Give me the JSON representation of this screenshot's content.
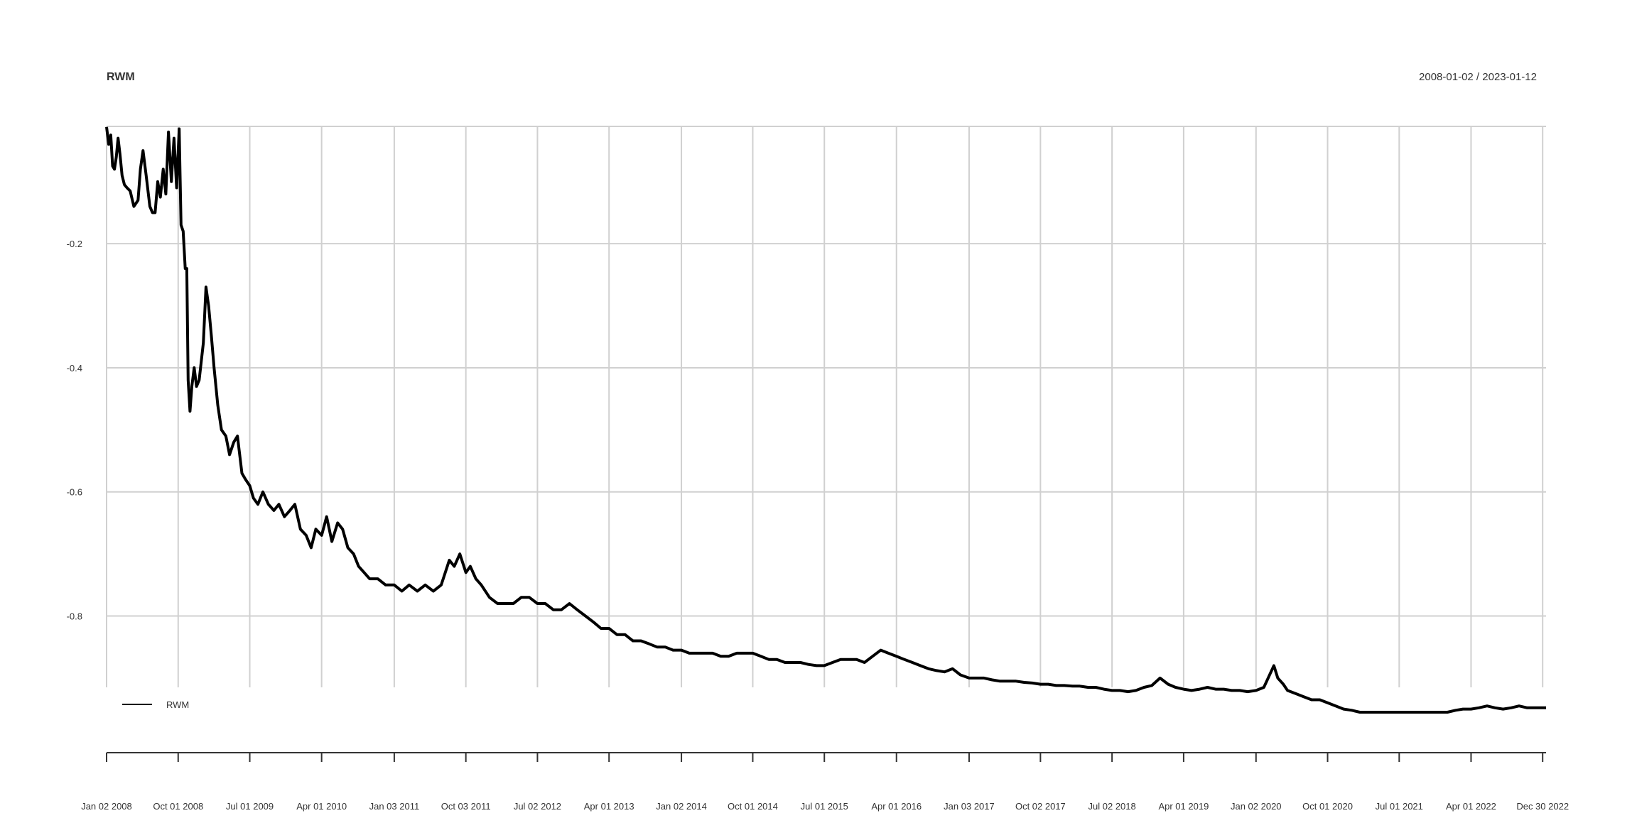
{
  "chart_data": {
    "type": "line",
    "title": "RWM",
    "date_range_label": "2008-01-02 / 2023-01-12",
    "xlabel": "",
    "ylabel": "",
    "x_range": [
      "2008-01-02",
      "2023-01-12"
    ],
    "ylim": [
      -0.915,
      -0.011
    ],
    "y_ticks": [
      -0.2,
      -0.4,
      -0.6,
      -0.8
    ],
    "y_tick_labels": [
      "-0.2",
      "-0.4",
      "-0.6",
      "-0.8"
    ],
    "x_ticks": [
      "2008-01-02",
      "2008-10-01",
      "2009-07-01",
      "2010-04-01",
      "2011-01-03",
      "2011-10-03",
      "2012-07-02",
      "2013-04-01",
      "2014-01-02",
      "2014-10-01",
      "2015-07-01",
      "2016-04-01",
      "2017-01-03",
      "2017-10-02",
      "2018-07-02",
      "2019-04-01",
      "2020-01-02",
      "2020-10-01",
      "2021-07-01",
      "2022-04-01",
      "2022-12-30"
    ],
    "x_tick_labels": [
      "Jan 02 2008",
      "Oct 01 2008",
      "Jul 01 2009",
      "Apr 01 2010",
      "Jan 03 2011",
      "Oct 03 2011",
      "Jul 02 2012",
      "Apr 01 2013",
      "Jan 02 2014",
      "Oct 01 2014",
      "Jul 01 2015",
      "Apr 01 2016",
      "Jan 03 2017",
      "Oct 02 2017",
      "Jul 02 2018",
      "Apr 01 2019",
      "Jan 02 2020",
      "Oct 01 2020",
      "Jul 01 2021",
      "Apr 01 2022",
      "Dec 30 2022"
    ],
    "grid": true,
    "legend": {
      "placement": "bottom-left",
      "entries": [
        "RWM"
      ]
    },
    "series": [
      {
        "name": "RWM",
        "color": "#000000",
        "points": [
          [
            "2008-01-02",
            -0.012
          ],
          [
            "2008-01-10",
            -0.04
          ],
          [
            "2008-01-18",
            -0.025
          ],
          [
            "2008-01-25",
            -0.075
          ],
          [
            "2008-02-01",
            -0.08
          ],
          [
            "2008-02-08",
            -0.06
          ],
          [
            "2008-02-15",
            -0.03
          ],
          [
            "2008-02-22",
            -0.055
          ],
          [
            "2008-03-01",
            -0.09
          ],
          [
            "2008-03-10",
            -0.105
          ],
          [
            "2008-03-20",
            -0.11
          ],
          [
            "2008-04-01",
            -0.115
          ],
          [
            "2008-04-15",
            -0.14
          ],
          [
            "2008-05-01",
            -0.13
          ],
          [
            "2008-05-10",
            -0.08
          ],
          [
            "2008-05-20",
            -0.05
          ],
          [
            "2008-06-01",
            -0.09
          ],
          [
            "2008-06-15",
            -0.14
          ],
          [
            "2008-06-25",
            -0.15
          ],
          [
            "2008-07-05",
            -0.15
          ],
          [
            "2008-07-15",
            -0.1
          ],
          [
            "2008-07-25",
            -0.125
          ],
          [
            "2008-08-05",
            -0.08
          ],
          [
            "2008-08-15",
            -0.12
          ],
          [
            "2008-08-25",
            -0.02
          ],
          [
            "2008-09-05",
            -0.1
          ],
          [
            "2008-09-15",
            -0.03
          ],
          [
            "2008-09-25",
            -0.11
          ],
          [
            "2008-10-05",
            -0.015
          ],
          [
            "2008-10-12",
            -0.17
          ],
          [
            "2008-10-20",
            -0.18
          ],
          [
            "2008-10-28",
            -0.24
          ],
          [
            "2008-11-03",
            -0.24
          ],
          [
            "2008-11-08",
            -0.42
          ],
          [
            "2008-11-15",
            -0.47
          ],
          [
            "2008-11-22",
            -0.43
          ],
          [
            "2008-12-01",
            -0.4
          ],
          [
            "2008-12-10",
            -0.43
          ],
          [
            "2008-12-20",
            -0.42
          ],
          [
            "2009-01-05",
            -0.36
          ],
          [
            "2009-01-15",
            -0.27
          ],
          [
            "2009-01-25",
            -0.3
          ],
          [
            "2009-02-05",
            -0.35
          ],
          [
            "2009-02-15",
            -0.4
          ],
          [
            "2009-03-01",
            -0.46
          ],
          [
            "2009-03-15",
            -0.5
          ],
          [
            "2009-04-01",
            -0.51
          ],
          [
            "2009-04-15",
            -0.54
          ],
          [
            "2009-05-01",
            -0.52
          ],
          [
            "2009-05-15",
            -0.51
          ],
          [
            "2009-06-01",
            -0.57
          ],
          [
            "2009-06-15",
            -0.58
          ],
          [
            "2009-07-01",
            -0.59
          ],
          [
            "2009-07-15",
            -0.61
          ],
          [
            "2009-08-01",
            -0.62
          ],
          [
            "2009-08-20",
            -0.6
          ],
          [
            "2009-09-10",
            -0.62
          ],
          [
            "2009-10-01",
            -0.63
          ],
          [
            "2009-10-20",
            -0.62
          ],
          [
            "2009-11-10",
            -0.64
          ],
          [
            "2009-12-01",
            -0.63
          ],
          [
            "2009-12-20",
            -0.62
          ],
          [
            "2010-01-10",
            -0.66
          ],
          [
            "2010-02-01",
            -0.67
          ],
          [
            "2010-02-20",
            -0.69
          ],
          [
            "2010-03-10",
            -0.66
          ],
          [
            "2010-04-01",
            -0.67
          ],
          [
            "2010-04-20",
            -0.64
          ],
          [
            "2010-05-10",
            -0.68
          ],
          [
            "2010-06-01",
            -0.65
          ],
          [
            "2010-06-20",
            -0.66
          ],
          [
            "2010-07-10",
            -0.69
          ],
          [
            "2010-08-01",
            -0.7
          ],
          [
            "2010-08-20",
            -0.72
          ],
          [
            "2010-09-10",
            -0.73
          ],
          [
            "2010-10-01",
            -0.74
          ],
          [
            "2010-11-01",
            -0.74
          ],
          [
            "2010-12-01",
            -0.75
          ],
          [
            "2011-01-03",
            -0.75
          ],
          [
            "2011-02-01",
            -0.76
          ],
          [
            "2011-03-01",
            -0.75
          ],
          [
            "2011-04-01",
            -0.76
          ],
          [
            "2011-05-01",
            -0.75
          ],
          [
            "2011-06-01",
            -0.76
          ],
          [
            "2011-07-01",
            -0.75
          ],
          [
            "2011-08-01",
            -0.71
          ],
          [
            "2011-08-20",
            -0.72
          ],
          [
            "2011-09-10",
            -0.7
          ],
          [
            "2011-10-03",
            -0.73
          ],
          [
            "2011-10-20",
            -0.72
          ],
          [
            "2011-11-10",
            -0.74
          ],
          [
            "2011-12-01",
            -0.75
          ],
          [
            "2012-01-01",
            -0.77
          ],
          [
            "2012-02-01",
            -0.78
          ],
          [
            "2012-03-01",
            -0.78
          ],
          [
            "2012-04-01",
            -0.78
          ],
          [
            "2012-05-01",
            -0.77
          ],
          [
            "2012-06-01",
            -0.77
          ],
          [
            "2012-07-02",
            -0.78
          ],
          [
            "2012-08-01",
            -0.78
          ],
          [
            "2012-09-01",
            -0.79
          ],
          [
            "2012-10-01",
            -0.79
          ],
          [
            "2012-11-01",
            -0.78
          ],
          [
            "2012-12-01",
            -0.79
          ],
          [
            "2013-01-01",
            -0.8
          ],
          [
            "2013-02-01",
            -0.81
          ],
          [
            "2013-03-01",
            -0.82
          ],
          [
            "2013-04-01",
            -0.82
          ],
          [
            "2013-05-01",
            -0.83
          ],
          [
            "2013-06-01",
            -0.83
          ],
          [
            "2013-07-01",
            -0.84
          ],
          [
            "2013-08-01",
            -0.84
          ],
          [
            "2013-09-01",
            -0.845
          ],
          [
            "2013-10-01",
            -0.85
          ],
          [
            "2013-11-01",
            -0.85
          ],
          [
            "2013-12-01",
            -0.855
          ],
          [
            "2014-01-02",
            -0.855
          ],
          [
            "2014-02-01",
            -0.86
          ],
          [
            "2014-03-01",
            -0.86
          ],
          [
            "2014-04-01",
            -0.86
          ],
          [
            "2014-05-01",
            -0.86
          ],
          [
            "2014-06-01",
            -0.865
          ],
          [
            "2014-07-01",
            -0.865
          ],
          [
            "2014-08-01",
            -0.86
          ],
          [
            "2014-09-01",
            -0.86
          ],
          [
            "2014-10-01",
            -0.86
          ],
          [
            "2014-11-01",
            -0.865
          ],
          [
            "2014-12-01",
            -0.87
          ],
          [
            "2015-01-01",
            -0.87
          ],
          [
            "2015-02-01",
            -0.875
          ],
          [
            "2015-03-01",
            -0.875
          ],
          [
            "2015-04-01",
            -0.875
          ],
          [
            "2015-05-01",
            -0.878
          ],
          [
            "2015-06-01",
            -0.88
          ],
          [
            "2015-07-01",
            -0.88
          ],
          [
            "2015-08-01",
            -0.875
          ],
          [
            "2015-09-01",
            -0.87
          ],
          [
            "2015-10-01",
            -0.87
          ],
          [
            "2015-11-01",
            -0.87
          ],
          [
            "2015-12-01",
            -0.875
          ],
          [
            "2016-01-01",
            -0.865
          ],
          [
            "2016-02-01",
            -0.855
          ],
          [
            "2016-03-01",
            -0.86
          ],
          [
            "2016-04-01",
            -0.865
          ],
          [
            "2016-05-01",
            -0.87
          ],
          [
            "2016-06-01",
            -0.875
          ],
          [
            "2016-07-01",
            -0.88
          ],
          [
            "2016-08-01",
            -0.885
          ],
          [
            "2016-09-01",
            -0.888
          ],
          [
            "2016-10-01",
            -0.89
          ],
          [
            "2016-11-01",
            -0.885
          ],
          [
            "2016-12-01",
            -0.895
          ],
          [
            "2017-01-03",
            -0.9
          ],
          [
            "2017-02-01",
            -0.9
          ],
          [
            "2017-03-01",
            -0.9
          ],
          [
            "2017-04-01",
            -0.903
          ],
          [
            "2017-05-01",
            -0.905
          ],
          [
            "2017-06-01",
            -0.905
          ],
          [
            "2017-07-01",
            -0.905
          ],
          [
            "2017-08-01",
            -0.907
          ],
          [
            "2017-09-01",
            -0.908
          ],
          [
            "2017-10-02",
            -0.91
          ],
          [
            "2017-11-01",
            -0.91
          ],
          [
            "2017-12-01",
            -0.912
          ],
          [
            "2018-01-01",
            -0.912
          ],
          [
            "2018-02-01",
            -0.913
          ],
          [
            "2018-03-01",
            -0.913
          ],
          [
            "2018-04-01",
            -0.915
          ],
          [
            "2018-05-01",
            -0.915
          ],
          [
            "2018-06-01",
            -0.918
          ],
          [
            "2018-07-02",
            -0.92
          ],
          [
            "2018-08-01",
            -0.92
          ],
          [
            "2018-09-01",
            -0.922
          ],
          [
            "2018-10-01",
            -0.92
          ],
          [
            "2018-11-01",
            -0.915
          ],
          [
            "2018-12-01",
            -0.912
          ],
          [
            "2019-01-01",
            -0.9
          ],
          [
            "2019-02-01",
            -0.91
          ],
          [
            "2019-03-01",
            -0.915
          ],
          [
            "2019-04-01",
            -0.918
          ],
          [
            "2019-05-01",
            -0.92
          ],
          [
            "2019-06-01",
            -0.918
          ],
          [
            "2019-07-01",
            -0.915
          ],
          [
            "2019-08-01",
            -0.918
          ],
          [
            "2019-09-01",
            -0.918
          ],
          [
            "2019-10-01",
            -0.92
          ],
          [
            "2019-11-01",
            -0.92
          ],
          [
            "2019-12-01",
            -0.922
          ],
          [
            "2020-01-02",
            -0.92
          ],
          [
            "2020-02-01",
            -0.915
          ],
          [
            "2020-03-10",
            -0.88
          ],
          [
            "2020-03-25",
            -0.9
          ],
          [
            "2020-04-15",
            -0.91
          ],
          [
            "2020-05-01",
            -0.92
          ],
          [
            "2020-06-01",
            -0.925
          ],
          [
            "2020-07-01",
            -0.93
          ],
          [
            "2020-08-01",
            -0.935
          ],
          [
            "2020-09-01",
            -0.935
          ],
          [
            "2020-10-01",
            -0.94
          ],
          [
            "2020-11-01",
            -0.945
          ],
          [
            "2020-12-01",
            -0.95
          ],
          [
            "2021-01-01",
            -0.952
          ],
          [
            "2021-02-01",
            -0.955
          ],
          [
            "2021-03-01",
            -0.955
          ],
          [
            "2021-04-01",
            -0.955
          ],
          [
            "2021-05-01",
            -0.955
          ],
          [
            "2021-06-01",
            -0.955
          ],
          [
            "2021-07-01",
            -0.955
          ],
          [
            "2021-08-01",
            -0.955
          ],
          [
            "2021-09-01",
            -0.955
          ],
          [
            "2021-10-01",
            -0.955
          ],
          [
            "2021-11-01",
            -0.955
          ],
          [
            "2021-12-01",
            -0.955
          ],
          [
            "2022-01-01",
            -0.955
          ],
          [
            "2022-02-01",
            -0.952
          ],
          [
            "2022-03-01",
            -0.95
          ],
          [
            "2022-04-01",
            -0.95
          ],
          [
            "2022-05-01",
            -0.948
          ],
          [
            "2022-06-01",
            -0.945
          ],
          [
            "2022-07-01",
            -0.948
          ],
          [
            "2022-08-01",
            -0.95
          ],
          [
            "2022-09-01",
            -0.948
          ],
          [
            "2022-10-01",
            -0.945
          ],
          [
            "2022-11-01",
            -0.948
          ],
          [
            "2022-12-01",
            -0.948
          ],
          [
            "2023-01-12",
            -0.948
          ]
        ]
      }
    ]
  }
}
